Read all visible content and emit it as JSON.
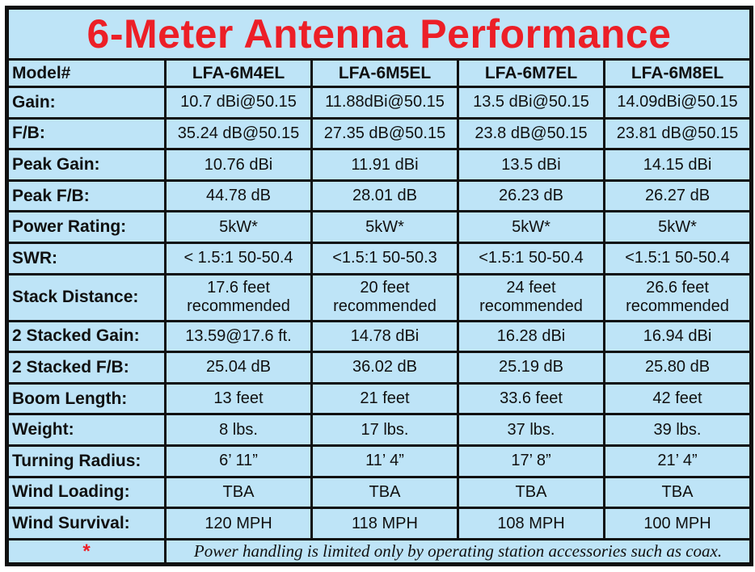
{
  "title": "6-Meter Antenna Performance",
  "colors": {
    "background": "#BEE4F7",
    "border": "#101010",
    "title_red": "#EC1F27",
    "text": "#101010",
    "outer_bg": "#FFFFFF"
  },
  "table": {
    "header": {
      "label": "Model#",
      "models": [
        "LFA-6M4EL",
        "LFA-6M5EL",
        "LFA-6M7EL",
        "LFA-6M8EL"
      ]
    },
    "rows": [
      {
        "label": "Gain:",
        "values": [
          "10.7 dBi@50.15",
          "11.88dBi@50.15",
          "13.5 dBi@50.15",
          "14.09dBi@50.15"
        ]
      },
      {
        "label": "F/B:",
        "values": [
          "35.24 dB@50.15",
          "27.35 dB@50.15",
          "23.8 dB@50.15",
          "23.81 dB@50.15"
        ]
      },
      {
        "label": "Peak Gain:",
        "values": [
          "10.76 dBi",
          "11.91 dBi",
          "13.5 dBi",
          "14.15 dBi"
        ]
      },
      {
        "label": "Peak F/B:",
        "values": [
          "44.78 dB",
          "28.01 dB",
          "26.23 dB",
          "26.27 dB"
        ]
      },
      {
        "label": "Power Rating:",
        "values": [
          "5kW*",
          "5kW*",
          "5kW*",
          "5kW*"
        ]
      },
      {
        "label": "SWR:",
        "values": [
          "< 1.5:1 50-50.4",
          "<1.5:1 50-50.3",
          "<1.5:1 50-50.4",
          "<1.5:1 50-50.4"
        ]
      },
      {
        "label": "Stack Distance:",
        "values": [
          "17.6 feet\nrecommended",
          "20 feet\nrecommended",
          "24 feet\nrecommended",
          "26.6 feet\nrecommended"
        ]
      },
      {
        "label": "2 Stacked Gain:",
        "values": [
          "13.59@17.6 ft.",
          "14.78 dBi",
          "16.28 dBi",
          "16.94 dBi"
        ]
      },
      {
        "label": "2 Stacked F/B:",
        "values": [
          "25.04 dB",
          "36.02 dB",
          "25.19 dB",
          "25.80 dB"
        ]
      },
      {
        "label": "Boom Length:",
        "values": [
          "13 feet",
          "21 feet",
          "33.6 feet",
          "42 feet"
        ]
      },
      {
        "label": "Weight:",
        "values": [
          "8 lbs.",
          "17 lbs.",
          "37 lbs.",
          "39 lbs."
        ]
      },
      {
        "label": "Turning Radius:",
        "values": [
          "6’ 11”",
          "11’ 4”",
          "17’ 8”",
          "21’ 4”"
        ]
      },
      {
        "label": "Wind Loading:",
        "values": [
          "TBA",
          "TBA",
          "TBA",
          "TBA"
        ]
      },
      {
        "label": "Wind Survival:",
        "values": [
          "120 MPH",
          "118 MPH",
          "108 MPH",
          "100 MPH"
        ]
      }
    ],
    "footnote": {
      "marker": "*",
      "text": "Power handling is limited only by operating station accessories such as coax."
    }
  }
}
